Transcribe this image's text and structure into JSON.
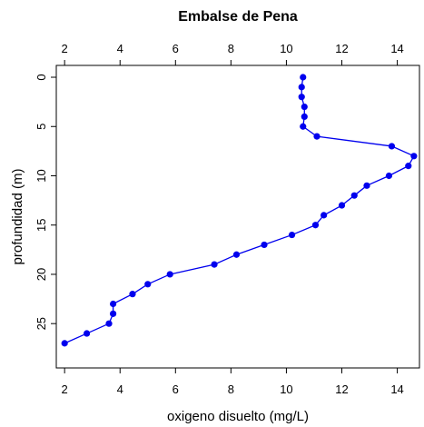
{
  "chart_data": {
    "type": "line",
    "title": "Embalse de Pena",
    "xlabel": "oxigeno disuelto (mg/L)",
    "ylabel": "profundidad (m)",
    "xlim": [
      1.7,
      14.8
    ],
    "ylim": [
      29.5,
      -1.2
    ],
    "x_ticks": [
      2,
      4,
      6,
      8,
      10,
      12,
      14
    ],
    "y_ticks": [
      0,
      5,
      10,
      15,
      20,
      25
    ],
    "x_ticks_top": true,
    "grid": false,
    "legend": "none",
    "series": [
      {
        "color": "#0000ee",
        "marker": "filled-circle",
        "points": [
          {
            "x": 10.6,
            "y": 0
          },
          {
            "x": 10.55,
            "y": 1
          },
          {
            "x": 10.55,
            "y": 2
          },
          {
            "x": 10.65,
            "y": 3
          },
          {
            "x": 10.65,
            "y": 4
          },
          {
            "x": 10.6,
            "y": 5
          },
          {
            "x": 11.1,
            "y": 6
          },
          {
            "x": 13.8,
            "y": 7
          },
          {
            "x": 14.6,
            "y": 8
          },
          {
            "x": 14.4,
            "y": 9
          },
          {
            "x": 13.7,
            "y": 10
          },
          {
            "x": 12.9,
            "y": 11
          },
          {
            "x": 12.45,
            "y": 12
          },
          {
            "x": 12.0,
            "y": 13
          },
          {
            "x": 11.35,
            "y": 14
          },
          {
            "x": 11.05,
            "y": 15
          },
          {
            "x": 10.2,
            "y": 16
          },
          {
            "x": 9.2,
            "y": 17
          },
          {
            "x": 8.2,
            "y": 18
          },
          {
            "x": 7.4,
            "y": 19
          },
          {
            "x": 5.8,
            "y": 20
          },
          {
            "x": 5.0,
            "y": 21
          },
          {
            "x": 4.45,
            "y": 22
          },
          {
            "x": 3.75,
            "y": 23
          },
          {
            "x": 3.75,
            "y": 24
          },
          {
            "x": 3.6,
            "y": 25
          },
          {
            "x": 2.8,
            "y": 26
          },
          {
            "x": 2.0,
            "y": 27
          }
        ]
      }
    ]
  }
}
